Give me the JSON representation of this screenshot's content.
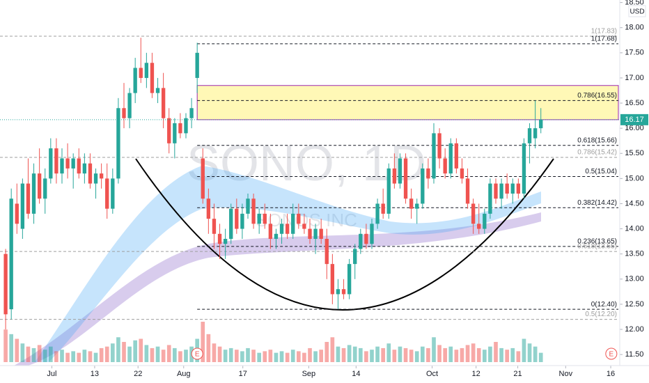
{
  "chart_data": {
    "type": "candlestick",
    "watermark": "SONO, 1D",
    "watermark_sub": "SONOS INC",
    "currency": "USD",
    "last_price": 16.17,
    "xlim": [
      -1,
      109
    ],
    "ylim": [
      11.28,
      18.55
    ],
    "xticks": [
      {
        "value": 8.2,
        "label": "Jul"
      },
      {
        "value": 15.8,
        "label": "13"
      },
      {
        "value": 23.5,
        "label": "22"
      },
      {
        "value": 31.6,
        "label": "Aug"
      },
      {
        "value": 42.1,
        "label": "17"
      },
      {
        "value": 53.8,
        "label": "Sep"
      },
      {
        "value": 62.2,
        "label": "14"
      },
      {
        "value": 75.7,
        "label": "Oct"
      },
      {
        "value": 83.5,
        "label": "12"
      },
      {
        "value": 90.9,
        "label": "21"
      },
      {
        "value": 99.4,
        "label": "Nov"
      },
      {
        "value": 107.4,
        "label": "16"
      }
    ],
    "yticks": [
      {
        "value": 11.5,
        "label": "11.50"
      },
      {
        "value": 12,
        "label": "12.00"
      },
      {
        "value": 12.5,
        "label": "12.50"
      },
      {
        "value": 13,
        "label": "13.00"
      },
      {
        "value": 13.5,
        "label": "13.50"
      },
      {
        "value": 14,
        "label": "14.00"
      },
      {
        "value": 14.5,
        "label": "14.50"
      },
      {
        "value": 15,
        "label": "15.00"
      },
      {
        "value": 15.5,
        "label": "15.50"
      },
      {
        "value": 16,
        "label": "16.00"
      },
      {
        "value": 16.5,
        "label": "16.50"
      },
      {
        "value": 17,
        "label": "17.00"
      },
      {
        "value": 17.5,
        "label": "17.50"
      },
      {
        "value": 18,
        "label": "18.00"
      },
      {
        "value": 18.5,
        "label": "18.50"
      }
    ],
    "up_color": "#26a69a",
    "down_color": "#ef5350",
    "open": [
      13.5,
      12.4,
      14.5,
      14.0,
      14.9,
      14.3,
      15.1,
      14.6,
      15.0,
      15.6,
      15.1,
      15.4,
      15.2,
      15.4,
      15.1,
      15.3,
      14.9,
      15.1,
      15.0,
      14.4,
      15.0,
      16.4,
      16.2,
      16.7,
      17.2,
      17.0,
      17.3,
      16.7,
      16.8,
      16.2,
      15.7,
      16.1,
      15.9,
      16.2,
      17.0,
      15.4,
      14.6,
      14.2,
      13.9,
      13.7,
      13.8,
      14.4,
      14.0,
      14.3,
      14.6,
      14.1,
      14.3,
      14.1,
      13.8,
      13.9,
      14.1,
      13.9,
      14.3,
      14.1,
      14.0,
      13.8,
      14.0,
      13.8,
      13.3,
      12.7,
      12.8,
      12.7,
      13.3,
      13.6,
      13.9,
      13.7,
      14.1,
      14.5,
      14.3,
      15.2,
      14.9,
      15.4,
      14.6,
      14.4,
      14.5,
      15.2,
      15.0,
      15.9,
      15.4,
      15.1,
      15.7,
      15.2,
      15.0,
      14.5,
      14.1,
      14.0,
      14.3,
      14.9,
      14.6,
      14.9,
      14.7,
      14.9,
      14.7,
      15.7,
      15.8,
      16.0
    ],
    "high": [
      13.6,
      14.8,
      14.9,
      15.0,
      15.4,
      15.3,
      15.6,
      15.2,
      15.8,
      15.8,
      15.6,
      15.7,
      15.5,
      15.6,
      15.5,
      15.5,
      15.2,
      15.3,
      15.3,
      15.2,
      16.6,
      16.9,
      16.8,
      17.4,
      17.8,
      17.5,
      17.5,
      17.0,
      17.1,
      16.4,
      16.2,
      16.3,
      16.3,
      16.6,
      17.7,
      15.6,
      14.8,
      14.5,
      14.1,
      14.0,
      14.5,
      14.6,
      14.5,
      14.7,
      14.7,
      14.4,
      14.5,
      14.3,
      14.0,
      14.2,
      14.3,
      14.5,
      14.5,
      14.3,
      14.2,
      14.1,
      14.2,
      14.0,
      13.5,
      13.0,
      13.0,
      13.4,
      13.7,
      14.0,
      14.1,
      14.2,
      14.6,
      14.8,
      15.3,
      15.5,
      15.5,
      15.5,
      14.8,
      14.6,
      15.3,
      15.4,
      16.1,
      16.0,
      15.6,
      15.8,
      15.8,
      15.4,
      15.2,
      14.6,
      14.5,
      14.4,
      15.0,
      15.0,
      15.0,
      15.1,
      15.0,
      15.0,
      15.8,
      16.1,
      16.55,
      16.4
    ],
    "low": [
      12.0,
      12.2,
      13.9,
      13.8,
      14.2,
      14.1,
      14.5,
      14.3,
      14.9,
      14.9,
      14.9,
      15.0,
      14.8,
      15.0,
      14.9,
      14.8,
      14.6,
      14.8,
      14.2,
      14.3,
      14.9,
      16.0,
      16.0,
      16.5,
      16.9,
      16.8,
      16.6,
      16.5,
      16.0,
      15.5,
      15.4,
      15.8,
      15.8,
      16.0,
      16.7,
      14.5,
      13.9,
      13.6,
      13.4,
      13.4,
      13.7,
      13.9,
      13.8,
      14.2,
      14.0,
      13.9,
      14.0,
      13.6,
      13.6,
      13.7,
      13.8,
      13.8,
      14.0,
      13.9,
      13.7,
      13.5,
      13.7,
      13.0,
      12.5,
      12.4,
      12.6,
      12.6,
      13.0,
      13.5,
      13.6,
      13.6,
      14.0,
      14.2,
      14.2,
      14.8,
      14.8,
      14.5,
      14.2,
      14.1,
      14.4,
      14.8,
      14.9,
      15.2,
      15.0,
      15.0,
      15.1,
      14.9,
      14.4,
      13.9,
      13.9,
      13.9,
      14.2,
      14.5,
      14.4,
      14.6,
      14.5,
      14.6,
      14.6,
      15.3,
      15.6,
      15.9
    ],
    "close": [
      12.3,
      14.6,
      14.1,
      14.9,
      14.3,
      15.1,
      14.6,
      15.0,
      15.6,
      15.1,
      15.4,
      15.2,
      15.4,
      15.1,
      15.3,
      14.9,
      15.1,
      15.0,
      14.4,
      15.0,
      16.4,
      16.2,
      16.7,
      17.2,
      17.0,
      17.3,
      16.7,
      16.8,
      16.2,
      15.7,
      16.1,
      15.9,
      16.2,
      16.4,
      17.5,
      14.6,
      14.2,
      13.9,
      13.7,
      13.8,
      14.4,
      14.0,
      14.3,
      14.6,
      14.1,
      14.3,
      14.1,
      13.8,
      13.9,
      14.1,
      13.9,
      14.3,
      14.1,
      14.0,
      13.8,
      14.0,
      13.8,
      13.3,
      12.7,
      12.8,
      12.7,
      13.3,
      13.6,
      13.9,
      13.7,
      14.1,
      14.5,
      14.3,
      15.2,
      14.9,
      15.4,
      14.6,
      14.4,
      14.5,
      15.2,
      15.0,
      15.9,
      15.4,
      15.1,
      15.7,
      15.2,
      15.0,
      14.5,
      14.1,
      14.0,
      14.3,
      14.9,
      14.6,
      14.9,
      14.7,
      14.9,
      14.7,
      15.7,
      16.0,
      16.0,
      16.17
    ],
    "volume": [
      2.1,
      1.8,
      1.5,
      1.2,
      1.0,
      0.9,
      1.1,
      0.8,
      1.0,
      0.7,
      0.8,
      0.6,
      0.7,
      0.6,
      0.8,
      0.7,
      0.6,
      0.9,
      1.0,
      1.2,
      1.6,
      1.3,
      1.0,
      1.4,
      1.5,
      1.1,
      0.9,
      1.0,
      0.8,
      1.1,
      0.9,
      0.7,
      0.8,
      1.0,
      1.5,
      2.6,
      1.8,
      1.2,
      1.0,
      0.8,
      0.9,
      0.8,
      0.7,
      0.9,
      0.8,
      0.6,
      0.7,
      0.8,
      0.6,
      0.7,
      0.6,
      0.8,
      0.7,
      0.6,
      0.9,
      0.7,
      0.8,
      1.3,
      1.6,
      1.0,
      0.9,
      1.1,
      1.0,
      0.9,
      0.7,
      0.8,
      1.0,
      0.9,
      1.2,
      0.8,
      1.0,
      0.9,
      0.8,
      0.7,
      1.0,
      0.9,
      1.6,
      1.1,
      0.9,
      1.0,
      0.8,
      0.9,
      1.1,
      1.2,
      0.9,
      0.8,
      1.0,
      1.3,
      0.9,
      0.8,
      0.9,
      0.7,
      1.5,
      1.2,
      1.0,
      0.6
    ],
    "zone": {
      "low": 16.17,
      "high": 16.85,
      "start": 34,
      "color": "#fff59d"
    },
    "fib_levels": [
      {
        "label": "1(17.83)",
        "value": 17.83,
        "color": "#9e9e9e"
      },
      {
        "label": "1(17.68)",
        "value": 17.68,
        "color": "#131722"
      },
      {
        "label": "0.786(16.55)",
        "value": 16.55,
        "color": "#131722"
      },
      {
        "label": "0.618(15.66)",
        "value": 15.66,
        "color": "#131722"
      },
      {
        "label": "0.786(15.42)",
        "value": 15.42,
        "color": "#9e9e9e"
      },
      {
        "label": "0.5(15.04)",
        "value": 15.04,
        "color": "#131722"
      },
      {
        "label": "0.382(14.42)",
        "value": 14.42,
        "color": "#131722"
      },
      {
        "label": "0.236(13.65)",
        "value": 13.65,
        "color": "#131722"
      },
      {
        "label": "0.618(13.55)",
        "value": 13.55,
        "color": "#9e9e9e"
      },
      {
        "label": "0(12.40)",
        "value": 12.4,
        "color": "#131722"
      },
      {
        "label": "0.5(12.20)",
        "value": 12.2,
        "color": "#9e9e9e"
      }
    ],
    "events": [
      {
        "label": "E",
        "x": 34
      },
      {
        "label": "E",
        "x": 107.5
      }
    ]
  }
}
